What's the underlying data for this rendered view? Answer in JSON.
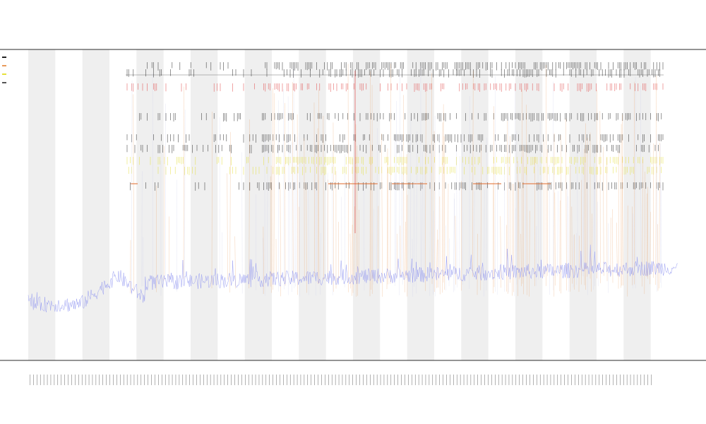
{
  "chart_data": {
    "type": "line",
    "title": "",
    "subtitle": "",
    "xlabel": "",
    "ylabel": "",
    "grid": false,
    "legend": "top-left",
    "colors": {
      "band": "#efefef",
      "series_main": "#8a8ff0",
      "series_spike": "#e89a5a",
      "event_black": "#222222",
      "event_red": "#e04040",
      "event_yellow": "#e6e03a",
      "event_orange": "#e06a2a",
      "axis": "#555555"
    },
    "x_tick_count": 180,
    "band_count": 24,
    "track_count": 8,
    "note_values": {
      "baseline": 0.18,
      "trend_mid": 0.28,
      "trend_end": 0.3
    }
  }
}
